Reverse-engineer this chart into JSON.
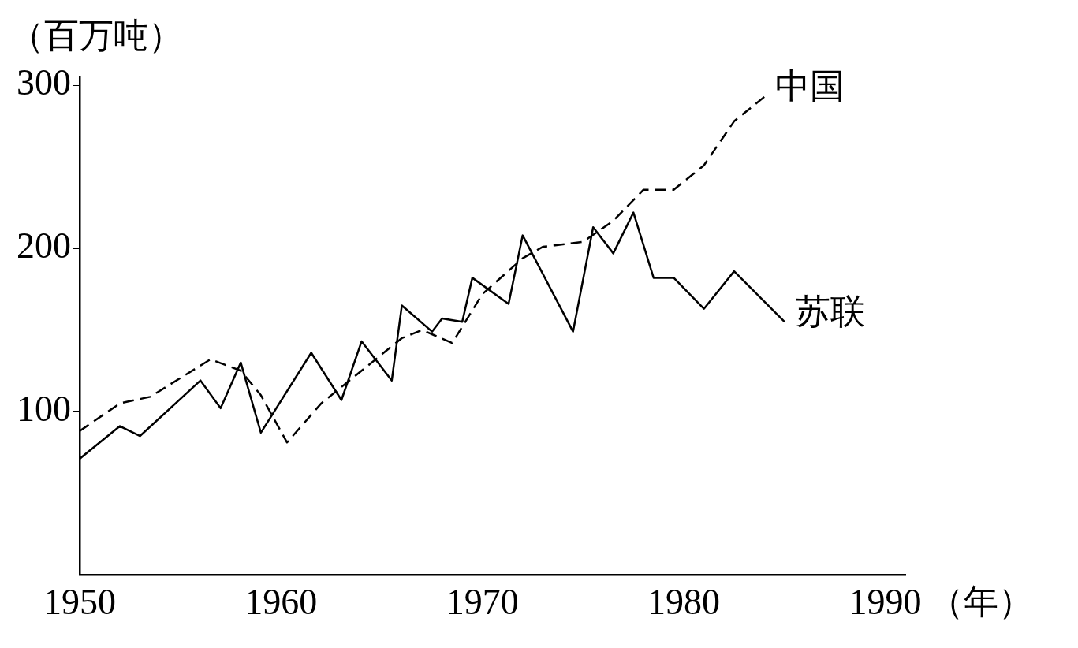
{
  "chart_data": {
    "type": "line",
    "ylabel": "（百万吨）",
    "xlabel": "（年）",
    "xlim": [
      1950,
      1991
    ],
    "xticks": [
      1950,
      1960,
      1970,
      1980,
      1990
    ],
    "ylim": [
      0,
      305
    ],
    "yticks": [
      100,
      200,
      300
    ],
    "legend": false,
    "marker": "none",
    "series": [
      {
        "name": "中国",
        "color": "#000000",
        "line_style": "dashed",
        "x": [
          1950,
          1952,
          1953.5,
          1956.5,
          1958,
          1959,
          1960.3,
          1962,
          1964,
          1966,
          1967,
          1968.5,
          1970,
          1972,
          1973,
          1975,
          1976.5,
          1978,
          1979.5,
          1981,
          1982.5,
          1984
        ],
        "values": [
          88,
          105,
          109,
          132,
          125,
          110,
          81,
          105,
          125,
          145,
          150,
          142,
          172,
          194,
          201,
          204,
          217,
          236,
          236,
          251,
          278,
          293
        ]
      },
      {
        "name": "苏联",
        "color": "#000000",
        "line_style": "solid",
        "x": [
          1950,
          1952,
          1953,
          1956,
          1957,
          1958,
          1959,
          1961.5,
          1963,
          1964,
          1965.5,
          1966,
          1967.5,
          1968,
          1969,
          1969.5,
          1971.3,
          1972,
          1974.5,
          1975.5,
          1976.5,
          1977.5,
          1978.5,
          1979.5,
          1981,
          1982.5,
          1985
        ],
        "values": [
          71,
          91,
          85,
          119,
          102,
          130,
          87,
          136,
          107,
          143,
          119,
          165,
          149,
          157,
          155,
          182,
          166,
          208,
          149,
          213,
          197,
          222,
          182,
          182,
          163,
          186,
          155
        ]
      }
    ]
  }
}
